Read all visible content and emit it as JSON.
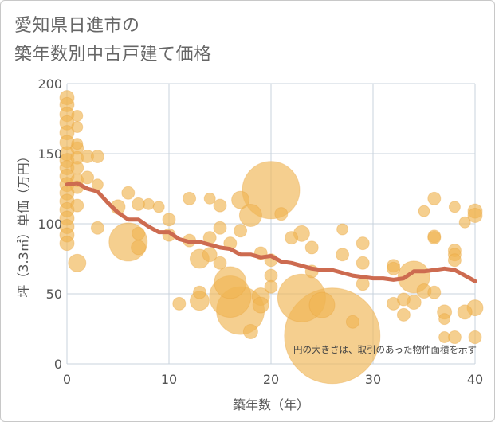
{
  "title_lines": [
    "愛知県日進市の",
    "築年数別中古戸建て価格"
  ],
  "chart_data": {
    "type": "scatter",
    "title": "愛知県日進市の築年数別中古戸建て価格",
    "xlabel": "築年数（年）",
    "ylabel": "坪（3.3㎡）単価（万円）",
    "xlim": [
      0,
      40
    ],
    "ylim": [
      0,
      200
    ],
    "xticks": [
      0,
      10,
      20,
      30,
      40
    ],
    "yticks": [
      0,
      50,
      100,
      150,
      200
    ],
    "grid": true,
    "annotation": "円の大きさは、取引のあった物件面積を示す",
    "colors": {
      "bubble": "#f0b653",
      "trend": "#cd6b50",
      "grid": "#c9d3de"
    },
    "series": [
      {
        "kind": "bubble",
        "points": [
          {
            "x": 0,
            "y": 190,
            "size": 9
          },
          {
            "x": 0,
            "y": 185,
            "size": 9
          },
          {
            "x": 0,
            "y": 178,
            "size": 9
          },
          {
            "x": 0,
            "y": 172,
            "size": 9
          },
          {
            "x": 0,
            "y": 165,
            "size": 9
          },
          {
            "x": 0,
            "y": 158,
            "size": 9
          },
          {
            "x": 0,
            "y": 150,
            "size": 9
          },
          {
            "x": 0,
            "y": 145,
            "size": 9
          },
          {
            "x": 0,
            "y": 140,
            "size": 9
          },
          {
            "x": 0,
            "y": 134,
            "size": 9
          },
          {
            "x": 0,
            "y": 128,
            "size": 9
          },
          {
            "x": 0,
            "y": 122,
            "size": 9
          },
          {
            "x": 0,
            "y": 116,
            "size": 9
          },
          {
            "x": 0,
            "y": 110,
            "size": 9
          },
          {
            "x": 0,
            "y": 104,
            "size": 9
          },
          {
            "x": 0,
            "y": 98,
            "size": 9
          },
          {
            "x": 0,
            "y": 92,
            "size": 9
          },
          {
            "x": 0,
            "y": 86,
            "size": 9
          },
          {
            "x": 1,
            "y": 177,
            "size": 7
          },
          {
            "x": 1,
            "y": 169,
            "size": 7
          },
          {
            "x": 1,
            "y": 157,
            "size": 7
          },
          {
            "x": 1,
            "y": 154,
            "size": 8
          },
          {
            "x": 1,
            "y": 147,
            "size": 8
          },
          {
            "x": 1,
            "y": 140,
            "size": 8
          },
          {
            "x": 1,
            "y": 131,
            "size": 8
          },
          {
            "x": 1,
            "y": 126,
            "size": 8
          },
          {
            "x": 1,
            "y": 113,
            "size": 8
          },
          {
            "x": 1,
            "y": 72,
            "size": 11
          },
          {
            "x": 2,
            "y": 148,
            "size": 8
          },
          {
            "x": 3,
            "y": 148,
            "size": 8
          },
          {
            "x": 2,
            "y": 133,
            "size": 8
          },
          {
            "x": 3,
            "y": 128,
            "size": 7
          },
          {
            "x": 3,
            "y": 97,
            "size": 8
          },
          {
            "x": 5,
            "y": 112,
            "size": 9
          },
          {
            "x": 6,
            "y": 122,
            "size": 8
          },
          {
            "x": 6,
            "y": 87,
            "size": 24
          },
          {
            "x": 7,
            "y": 114,
            "size": 8
          },
          {
            "x": 7,
            "y": 93,
            "size": 8
          },
          {
            "x": 7,
            "y": 83,
            "size": 9
          },
          {
            "x": 8,
            "y": 114,
            "size": 7
          },
          {
            "x": 9,
            "y": 112,
            "size": 7
          },
          {
            "x": 10,
            "y": 103,
            "size": 8
          },
          {
            "x": 10,
            "y": 92,
            "size": 8
          },
          {
            "x": 11,
            "y": 43,
            "size": 8
          },
          {
            "x": 12,
            "y": 118,
            "size": 8
          },
          {
            "x": 12,
            "y": 88,
            "size": 8
          },
          {
            "x": 13,
            "y": 75,
            "size": 12
          },
          {
            "x": 13,
            "y": 45,
            "size": 12
          },
          {
            "x": 13,
            "y": 51,
            "size": 8
          },
          {
            "x": 14,
            "y": 118,
            "size": 7
          },
          {
            "x": 14,
            "y": 78,
            "size": 9
          },
          {
            "x": 14,
            "y": 90,
            "size": 8
          },
          {
            "x": 15,
            "y": 113,
            "size": 8
          },
          {
            "x": 15,
            "y": 97,
            "size": 8
          },
          {
            "x": 15,
            "y": 72,
            "size": 8
          },
          {
            "x": 16,
            "y": 58,
            "size": 20
          },
          {
            "x": 16,
            "y": 48,
            "size": 26
          },
          {
            "x": 16,
            "y": 86,
            "size": 8
          },
          {
            "x": 17,
            "y": 117,
            "size": 11
          },
          {
            "x": 17,
            "y": 38,
            "size": 30
          },
          {
            "x": 17,
            "y": 95,
            "size": 8
          },
          {
            "x": 18,
            "y": 106,
            "size": 14
          },
          {
            "x": 18,
            "y": 23,
            "size": 9
          },
          {
            "x": 19,
            "y": 79,
            "size": 8
          },
          {
            "x": 19,
            "y": 48,
            "size": 11
          },
          {
            "x": 19,
            "y": 42,
            "size": 10
          },
          {
            "x": 20,
            "y": 124,
            "size": 36
          },
          {
            "x": 20,
            "y": 74,
            "size": 8
          },
          {
            "x": 20,
            "y": 63,
            "size": 8
          },
          {
            "x": 20,
            "y": 55,
            "size": 8
          },
          {
            "x": 21,
            "y": 107,
            "size": 8
          },
          {
            "x": 22,
            "y": 90,
            "size": 8
          },
          {
            "x": 23,
            "y": 93,
            "size": 10
          },
          {
            "x": 23,
            "y": 47,
            "size": 30
          },
          {
            "x": 24,
            "y": 83,
            "size": 8
          },
          {
            "x": 24,
            "y": 66,
            "size": 8
          },
          {
            "x": 25,
            "y": 42,
            "size": 16
          },
          {
            "x": 26,
            "y": 20,
            "size": 60
          },
          {
            "x": 27,
            "y": 96,
            "size": 7
          },
          {
            "x": 27,
            "y": 78,
            "size": 8
          },
          {
            "x": 28,
            "y": 30,
            "size": 8
          },
          {
            "x": 29,
            "y": 86,
            "size": 8
          },
          {
            "x": 29,
            "y": 72,
            "size": 8
          },
          {
            "x": 29,
            "y": 57,
            "size": 8
          },
          {
            "x": 32,
            "y": 70,
            "size": 8
          },
          {
            "x": 32,
            "y": 68,
            "size": 8
          },
          {
            "x": 32,
            "y": 43,
            "size": 8
          },
          {
            "x": 33,
            "y": 46,
            "size": 8
          },
          {
            "x": 33,
            "y": 35,
            "size": 8
          },
          {
            "x": 34,
            "y": 62,
            "size": 20
          },
          {
            "x": 34,
            "y": 44,
            "size": 9
          },
          {
            "x": 35,
            "y": 109,
            "size": 7
          },
          {
            "x": 35,
            "y": 52,
            "size": 9
          },
          {
            "x": 36,
            "y": 118,
            "size": 8
          },
          {
            "x": 36,
            "y": 91,
            "size": 8
          },
          {
            "x": 36,
            "y": 90,
            "size": 8
          },
          {
            "x": 36,
            "y": 51,
            "size": 8
          },
          {
            "x": 37,
            "y": 37,
            "size": 9
          },
          {
            "x": 37,
            "y": 32,
            "size": 7
          },
          {
            "x": 37,
            "y": 19,
            "size": 7
          },
          {
            "x": 38,
            "y": 112,
            "size": 7
          },
          {
            "x": 38,
            "y": 81,
            "size": 8
          },
          {
            "x": 38,
            "y": 78,
            "size": 8
          },
          {
            "x": 38,
            "y": 74,
            "size": 8
          },
          {
            "x": 38,
            "y": 19,
            "size": 8
          },
          {
            "x": 39,
            "y": 101,
            "size": 7
          },
          {
            "x": 39,
            "y": 37,
            "size": 9
          },
          {
            "x": 40,
            "y": 109,
            "size": 9
          },
          {
            "x": 40,
            "y": 106,
            "size": 9
          },
          {
            "x": 40,
            "y": 40,
            "size": 10
          },
          {
            "x": 40,
            "y": 19,
            "size": 8
          }
        ]
      },
      {
        "kind": "trend",
        "x": [
          0,
          1,
          2,
          3,
          4,
          5,
          6,
          7,
          8,
          9,
          10,
          11,
          12,
          13,
          14,
          15,
          16,
          17,
          18,
          19,
          20,
          21,
          22,
          23,
          24,
          25,
          26,
          27,
          28,
          29,
          30,
          31,
          32,
          33,
          34,
          35,
          36,
          37,
          38,
          39,
          40
        ],
        "y": [
          128,
          129,
          125,
          123,
          115,
          108,
          103,
          103,
          98,
          94,
          94,
          89,
          87,
          87,
          85,
          83,
          82,
          78,
          78,
          76,
          77,
          73,
          72,
          70,
          68,
          67,
          67,
          65,
          63,
          62,
          61,
          61,
          60,
          61,
          66,
          66,
          67,
          68,
          67,
          63,
          59
        ]
      }
    ]
  }
}
